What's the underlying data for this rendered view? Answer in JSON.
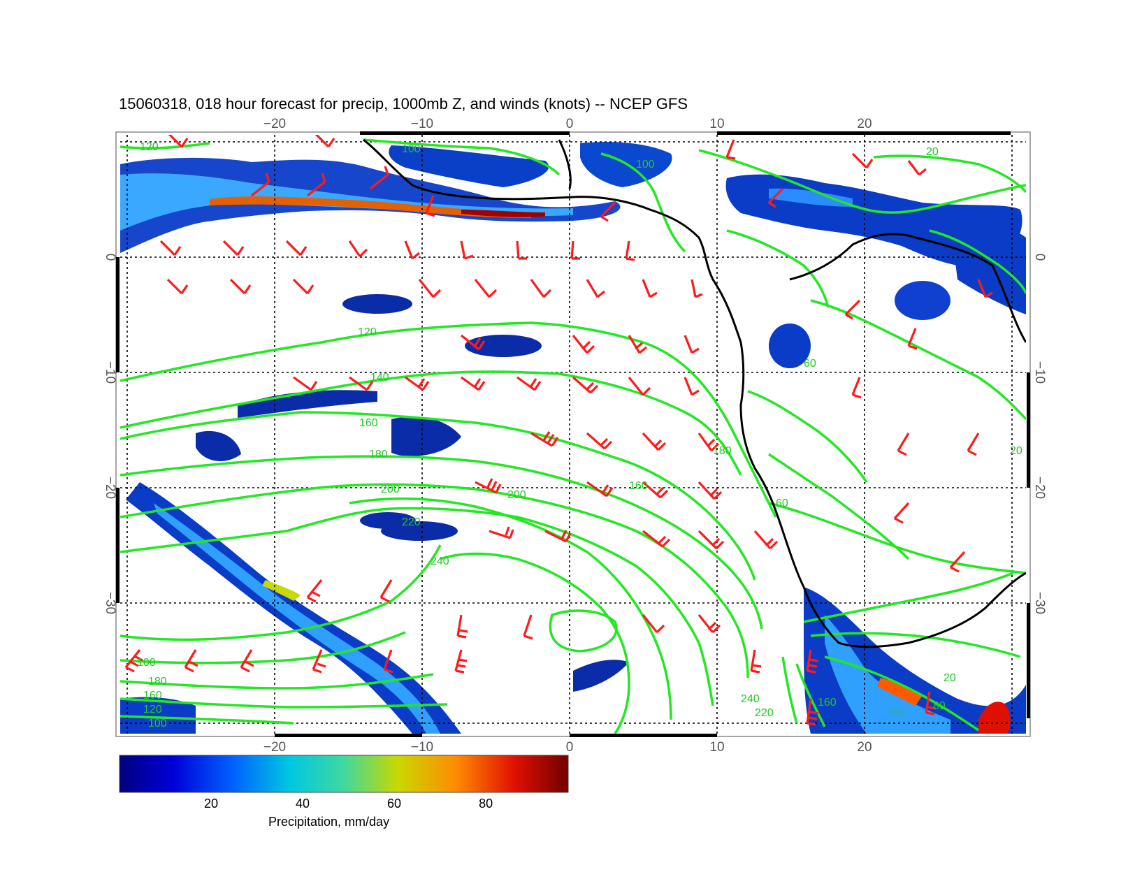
{
  "title": "15060318, 018 hour forecast for precip, 1000mb Z, and winds (knots) -- NCEP GFS",
  "map": {
    "lon_range": [
      -30,
      31
    ],
    "lat_range": [
      -40,
      11
    ],
    "lon_tick_labels": [
      "−20",
      "−10",
      "0",
      "10",
      "20"
    ],
    "lat_tick_labels": [
      "0",
      "−10",
      "−20",
      "−30"
    ],
    "grid": "dotted",
    "contour_color": "#22e822",
    "barb_color": "#ff1a1a",
    "coast_color": "#000000"
  },
  "height_contour_labels": [
    "120",
    "100",
    "120",
    "140",
    "160",
    "180",
    "200",
    "220",
    "240",
    "200",
    "180",
    "160",
    "120",
    "60",
    "100",
    "180",
    "160",
    "120",
    "100",
    "220",
    "240",
    "20",
    "80",
    "100",
    "160",
    "20",
    "100",
    "20",
    "60"
  ],
  "colorbar": {
    "title": "Precipitation, mm/day",
    "ticks": [
      "20",
      "40",
      "60",
      "80"
    ],
    "tick_values": [
      20,
      40,
      60,
      80
    ],
    "range": [
      0,
      98
    ],
    "colormap": [
      "#00007f",
      "#0000ff",
      "#0080ff",
      "#00d8d8",
      "#60e080",
      "#d8d800",
      "#ff8000",
      "#ff0000",
      "#7f0000"
    ]
  }
}
